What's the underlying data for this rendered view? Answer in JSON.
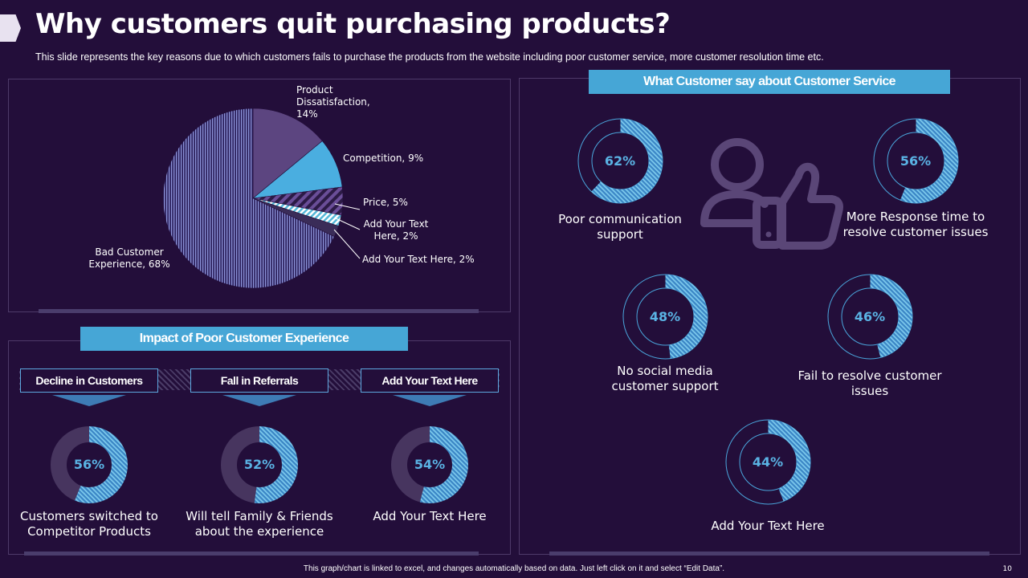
{
  "header": {
    "title": "Why customers quit purchasing products?",
    "subtitle": "This slide represents the key reasons due to which customers fails to purchase the products from the website including  poor customer service, more customer resolution time etc."
  },
  "chart_data": [
    {
      "type": "pie",
      "title": "",
      "categories": [
        "Product Dissatisfaction",
        "Competition",
        "Price",
        "Add Your Text Here",
        "Add Your Text Here",
        "Bad Customer Experience"
      ],
      "values": [
        14,
        9,
        5,
        2,
        2,
        68
      ],
      "labels": [
        {
          "lines": [
            "Product",
            "Dissatisfaction,",
            "14%"
          ]
        },
        {
          "lines": [
            "Competition,  9%"
          ]
        },
        {
          "lines": [
            "Price,  5%"
          ]
        },
        {
          "lines": [
            "Add  Your  Text",
            "Here,  2%"
          ]
        },
        {
          "lines": [
            "Add  Your  Text Here,  2%"
          ]
        },
        {
          "lines": [
            "Bad  Customer",
            "Experience,  68%"
          ]
        }
      ]
    },
    {
      "type": "donut",
      "title": "Impact of Poor Customer Experience",
      "items": [
        {
          "heading": "Decline in Customers",
          "value": 56,
          "label": "56%",
          "caption": [
            "Customers switched to",
            "Competitor Products"
          ]
        },
        {
          "heading": "Fall in Referrals",
          "value": 52,
          "label": "52%",
          "caption": [
            "Will tell Family & Friends",
            "about  the experience"
          ]
        },
        {
          "heading": "Add Your Text Here",
          "value": 54,
          "label": "54%",
          "caption": [
            "Add Your Text Here"
          ]
        }
      ]
    },
    {
      "type": "donut",
      "title": "What Customer say about Customer Service",
      "items": [
        {
          "value": 62,
          "label": "62%",
          "caption": [
            "Poor communication",
            "support"
          ]
        },
        {
          "value": 56,
          "label": "56%",
          "caption": [
            "More Response time to",
            "resolve customer issues"
          ]
        },
        {
          "value": 48,
          "label": "48%",
          "caption": [
            "No social media",
            "customer support"
          ]
        },
        {
          "value": 46,
          "label": "46%",
          "caption": [
            "Fail to resolve customer",
            "issues"
          ]
        },
        {
          "value": 44,
          "label": "44%",
          "caption": [
            "Add Your Text Here"
          ]
        }
      ]
    }
  ],
  "icons": [
    "customer-thumbs-up-icon"
  ],
  "colors": {
    "background": "#230e3a",
    "accent": "#46a6d6",
    "muted": "#4a3d6c",
    "pie_purple": "#5c4580"
  },
  "footer": "This graph/chart is linked to excel, and changes automatically based on data. Just left click on it and select “Edit Data”.",
  "page_number": "10"
}
